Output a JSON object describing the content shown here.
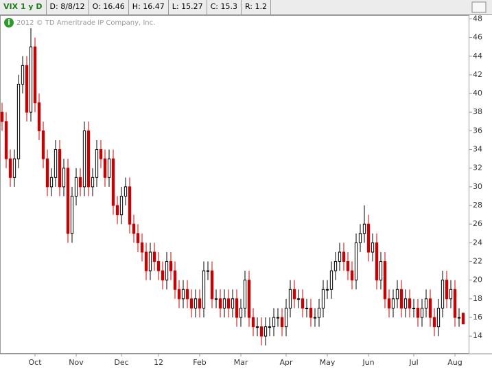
{
  "header": {
    "symbol": "VIX 1 y D",
    "date": "D: 8/8/12",
    "open": "O: 16.46",
    "high": "H: 16.47",
    "low": "L: 15.27",
    "close": "C: 15.3",
    "range": "R: 1.2"
  },
  "chart_data": {
    "type": "candlestick",
    "note": "2012 © TD Ameritrade IP Company, Inc.",
    "up_color": "#000000",
    "down_color": "#cc0000",
    "xlim": [
      -0.5,
      113.5
    ],
    "xticks": [
      {
        "value": 8,
        "label": "Oct"
      },
      {
        "value": 18,
        "label": "Nov"
      },
      {
        "value": 29,
        "label": "Dec"
      },
      {
        "value": 38,
        "label": "12"
      },
      {
        "value": 48,
        "label": "Feb"
      },
      {
        "value": 58,
        "label": "Mar"
      },
      {
        "value": 69,
        "label": "Apr"
      },
      {
        "value": 79,
        "label": "May"
      },
      {
        "value": 89,
        "label": "Jun"
      },
      {
        "value": 100,
        "label": "Jul"
      },
      {
        "value": 110,
        "label": "Aug"
      }
    ],
    "ylim": [
      12.1,
      48.4
    ],
    "yticks": [
      14,
      16,
      18,
      20,
      22,
      24,
      26,
      28,
      30,
      32,
      34,
      36,
      38,
      40,
      42,
      44,
      46,
      48
    ],
    "open": [
      38,
      37,
      33,
      31,
      33,
      41,
      43,
      38,
      45,
      39,
      36,
      33,
      30,
      31,
      34,
      30,
      32,
      25,
      29,
      31,
      30,
      36,
      30,
      31,
      34,
      33,
      31,
      33,
      28,
      27,
      29,
      30,
      26,
      25,
      24,
      23,
      21,
      23,
      22,
      21,
      20,
      22,
      21,
      19,
      18,
      19,
      18,
      17,
      18,
      17,
      21,
      21,
      18,
      18,
      17,
      18,
      17,
      18,
      16,
      17,
      20,
      16,
      15,
      15,
      14,
      15,
      15,
      16,
      16,
      15,
      17,
      19,
      18,
      18,
      17,
      17,
      16,
      16,
      17,
      19,
      19,
      21,
      22,
      23,
      22,
      21,
      20,
      24,
      25,
      26,
      23,
      24,
      20,
      22,
      18,
      17,
      18,
      19,
      17,
      18,
      17,
      17,
      16,
      17,
      18,
      16,
      15,
      17,
      20,
      18,
      19,
      16,
      16.46
    ],
    "high": [
      39,
      38,
      34,
      34,
      42,
      44,
      44,
      47,
      46,
      40,
      37,
      34,
      32,
      35,
      35,
      33,
      33,
      30,
      32,
      32,
      37,
      37,
      32,
      35,
      35,
      34,
      34,
      34,
      29,
      30,
      31,
      31,
      27,
      26,
      25,
      24,
      24,
      24,
      23,
      22,
      23,
      23,
      22,
      20,
      20,
      20,
      19,
      19,
      19,
      22,
      22,
      22,
      19,
      19,
      19,
      19,
      19,
      19,
      18,
      21,
      21,
      17,
      16,
      16,
      16,
      16,
      17,
      17,
      17,
      18,
      20,
      20,
      19,
      19,
      18,
      18,
      17,
      18,
      20,
      20,
      22,
      23,
      24,
      24,
      23,
      22,
      25,
      26,
      28,
      27,
      25,
      25,
      23,
      23,
      19,
      19,
      20,
      20,
      19,
      19,
      18,
      18,
      18,
      19,
      19,
      17,
      18,
      21,
      21,
      20,
      20,
      17,
      16.47
    ],
    "low": [
      36,
      32,
      30,
      30,
      32,
      40,
      37,
      37,
      38,
      35,
      32,
      29,
      29,
      30,
      29,
      29,
      24,
      24,
      28,
      29,
      29,
      29,
      29,
      30,
      32,
      30,
      30,
      27,
      26,
      26,
      28,
      25,
      24,
      23,
      22,
      20,
      20,
      21,
      20,
      19,
      19,
      20,
      18,
      17,
      17,
      17,
      16,
      16,
      16,
      16,
      20,
      17,
      17,
      16,
      16,
      16,
      16,
      15,
      15,
      16,
      15,
      14,
      14,
      13,
      13,
      14,
      14,
      15,
      14,
      14,
      16,
      17,
      17,
      16,
      16,
      15,
      15,
      15,
      16,
      18,
      18,
      20,
      21,
      21,
      20,
      19,
      19,
      23,
      24,
      22,
      22,
      19,
      19,
      17,
      16,
      16,
      17,
      16,
      16,
      16,
      16,
      15,
      15,
      16,
      15,
      14,
      14,
      16,
      17,
      17,
      15,
      15,
      15.27
    ],
    "close": [
      37,
      33,
      31,
      33,
      41,
      43,
      38,
      45,
      39,
      36,
      33,
      30,
      31,
      34,
      30,
      32,
      25,
      29,
      31,
      30,
      36,
      30,
      31,
      34,
      33,
      31,
      33,
      28,
      27,
      29,
      30,
      26,
      25,
      24,
      23,
      21,
      23,
      22,
      21,
      20,
      22,
      21,
      19,
      18,
      19,
      18,
      17,
      18,
      17,
      21,
      21,
      18,
      18,
      17,
      18,
      17,
      18,
      16,
      17,
      20,
      16,
      15,
      15,
      14,
      15,
      15,
      16,
      16,
      15,
      17,
      19,
      18,
      18,
      17,
      17,
      16,
      16,
      17,
      19,
      19,
      21,
      22,
      23,
      22,
      21,
      20,
      24,
      25,
      26,
      23,
      24,
      20,
      22,
      18,
      17,
      18,
      19,
      17,
      18,
      17,
      17,
      16,
      17,
      18,
      16,
      15,
      17,
      20,
      18,
      19,
      16,
      16,
      15.3
    ]
  }
}
